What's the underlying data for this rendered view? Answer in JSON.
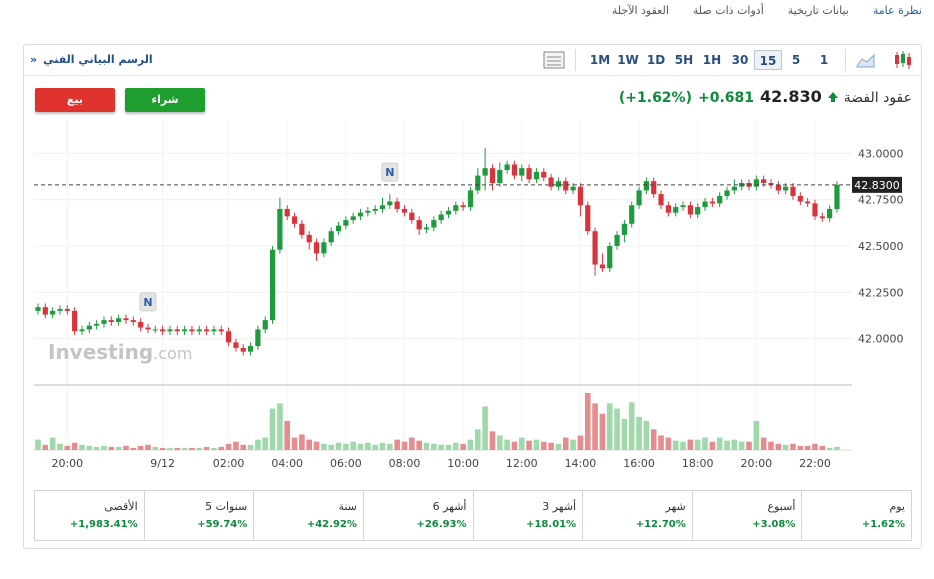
{
  "tabs": [
    "نظرة عامة",
    "بيانات تاريخية",
    "أدوات ذات صلة",
    "العقود الآجلة"
  ],
  "toolbar": {
    "title": "الرسم البياني الفني",
    "collapse": "«",
    "intervals": [
      "1M",
      "1W",
      "1D",
      "5H",
      "1H",
      "30",
      "15",
      "5",
      "1"
    ]
  },
  "trade": {
    "sell": "بيع",
    "buy": "شراء"
  },
  "quote": {
    "name": "عقود الفضة",
    "price": "42.830",
    "change": "+0.681",
    "change_pct": "(+1.62%)"
  },
  "chart_data": {
    "type": "candlestick",
    "categories": [
      null,
      null,
      null,
      null,
      "20:00",
      null,
      null,
      null,
      null,
      null,
      null,
      null,
      null,
      null,
      null,
      null,
      null,
      "9/12",
      null,
      null,
      null,
      null,
      null,
      null,
      null,
      null,
      "02:00",
      null,
      null,
      null,
      null,
      null,
      null,
      null,
      "04:00",
      null,
      null,
      null,
      null,
      null,
      null,
      null,
      "06:00",
      null,
      null,
      null,
      null,
      null,
      null,
      null,
      "08:00",
      null,
      null,
      null,
      null,
      null,
      null,
      null,
      "10:00",
      null,
      null,
      null,
      null,
      null,
      null,
      null,
      "12:00",
      null,
      null,
      null,
      null,
      null,
      null,
      null,
      "14:00",
      null,
      null,
      null,
      null,
      null,
      null,
      null,
      "16:00",
      null,
      null,
      null,
      null,
      null,
      null,
      null,
      "18:00",
      null,
      null,
      null,
      null,
      null,
      null,
      null,
      "20:00",
      null,
      null,
      null,
      null,
      null,
      null,
      null,
      "22:00",
      null,
      null,
      null
    ],
    "open": [
      42.15,
      42.17,
      42.13,
      42.15,
      42.16,
      42.15,
      42.04,
      42.05,
      42.07,
      42.08,
      42.1,
      42.09,
      42.11,
      42.1,
      42.09,
      42.06,
      42.05,
      42.05,
      42.04,
      42.05,
      42.04,
      42.05,
      42.04,
      42.05,
      42.04,
      42.05,
      42.04,
      41.98,
      41.95,
      41.93,
      41.96,
      42.05,
      42.1,
      42.48,
      42.7,
      42.66,
      42.62,
      42.56,
      42.52,
      42.46,
      42.52,
      42.58,
      42.61,
      42.64,
      42.66,
      42.68,
      42.69,
      42.7,
      42.72,
      42.74,
      42.7,
      42.68,
      42.64,
      42.59,
      42.6,
      42.64,
      42.67,
      42.69,
      42.72,
      42.71,
      42.8,
      42.88,
      42.92,
      42.84,
      42.91,
      42.94,
      42.88,
      42.92,
      42.86,
      42.9,
      42.87,
      42.82,
      42.85,
      42.8,
      42.82,
      42.72,
      42.58,
      42.4,
      42.38,
      42.5,
      42.56,
      42.62,
      42.72,
      42.8,
      42.85,
      42.78,
      42.72,
      42.68,
      42.71,
      42.72,
      42.67,
      42.71,
      42.74,
      42.73,
      42.77,
      42.8,
      42.82,
      42.84,
      42.82,
      42.86,
      42.84,
      42.83,
      42.8,
      42.82,
      42.77,
      42.74,
      42.73,
      42.66,
      42.65,
      42.7
    ],
    "high": [
      42.19,
      42.19,
      42.17,
      42.18,
      42.18,
      42.17,
      42.07,
      42.09,
      42.1,
      42.12,
      42.12,
      42.13,
      42.13,
      42.12,
      42.11,
      42.08,
      42.07,
      42.07,
      42.07,
      42.07,
      42.07,
      42.07,
      42.07,
      42.07,
      42.07,
      42.07,
      42.06,
      42.0,
      41.97,
      41.98,
      42.07,
      42.12,
      42.5,
      42.76,
      42.72,
      42.68,
      42.64,
      42.58,
      42.54,
      42.54,
      42.6,
      42.63,
      42.66,
      42.68,
      42.7,
      42.71,
      42.72,
      42.76,
      42.78,
      42.76,
      42.72,
      42.7,
      42.66,
      42.62,
      42.66,
      42.69,
      42.71,
      42.74,
      42.74,
      42.82,
      42.92,
      43.03,
      42.94,
      42.95,
      42.96,
      42.96,
      42.94,
      42.94,
      42.92,
      42.92,
      42.89,
      42.87,
      42.87,
      42.84,
      42.84,
      42.74,
      42.6,
      42.46,
      42.52,
      42.58,
      42.64,
      42.74,
      42.82,
      42.87,
      42.87,
      42.8,
      42.74,
      42.73,
      42.74,
      42.74,
      42.73,
      42.76,
      42.76,
      42.79,
      42.82,
      42.86,
      42.86,
      42.86,
      42.88,
      42.88,
      42.86,
      42.85,
      42.84,
      42.84,
      42.79,
      42.76,
      42.75,
      42.68,
      42.72,
      42.85
    ],
    "low": [
      42.13,
      42.11,
      42.11,
      42.13,
      42.13,
      42.02,
      42.02,
      42.03,
      42.05,
      42.06,
      42.07,
      42.07,
      42.08,
      42.07,
      42.04,
      42.03,
      42.03,
      42.02,
      42.02,
      42.02,
      42.02,
      42.02,
      42.02,
      42.02,
      42.02,
      42.02,
      41.96,
      41.93,
      41.91,
      41.91,
      41.94,
      42.03,
      42.08,
      42.46,
      42.64,
      42.6,
      42.54,
      42.48,
      42.42,
      42.44,
      42.5,
      42.56,
      42.59,
      42.62,
      42.64,
      42.66,
      42.67,
      42.68,
      42.7,
      42.68,
      42.66,
      42.62,
      42.56,
      42.57,
      42.58,
      42.62,
      42.65,
      42.67,
      42.69,
      42.69,
      42.78,
      42.8,
      42.8,
      42.82,
      42.89,
      42.86,
      42.85,
      42.84,
      42.84,
      42.85,
      42.8,
      42.8,
      42.78,
      42.78,
      42.66,
      42.56,
      42.34,
      42.36,
      42.36,
      42.48,
      42.52,
      42.6,
      42.7,
      42.78,
      42.76,
      42.7,
      42.66,
      42.66,
      42.69,
      42.65,
      42.65,
      42.69,
      42.71,
      42.71,
      42.75,
      42.78,
      42.8,
      42.8,
      42.8,
      42.82,
      42.81,
      42.78,
      42.78,
      42.75,
      42.72,
      42.71,
      42.64,
      42.63,
      42.63,
      42.68
    ],
    "close": [
      42.17,
      42.13,
      42.15,
      42.16,
      42.15,
      42.04,
      42.05,
      42.07,
      42.08,
      42.1,
      42.09,
      42.11,
      42.1,
      42.09,
      42.06,
      42.05,
      42.05,
      42.04,
      42.05,
      42.04,
      42.05,
      42.04,
      42.05,
      42.04,
      42.05,
      42.04,
      41.98,
      41.95,
      41.93,
      41.96,
      42.05,
      42.1,
      42.48,
      42.7,
      42.66,
      42.62,
      42.56,
      42.52,
      42.46,
      42.52,
      42.58,
      42.61,
      42.64,
      42.66,
      42.68,
      42.69,
      42.7,
      42.72,
      42.74,
      42.7,
      42.68,
      42.64,
      42.59,
      42.6,
      42.64,
      42.67,
      42.69,
      42.72,
      42.71,
      42.8,
      42.88,
      42.92,
      42.84,
      42.91,
      42.94,
      42.88,
      42.92,
      42.86,
      42.9,
      42.87,
      42.82,
      42.85,
      42.8,
      42.82,
      42.72,
      42.58,
      42.4,
      42.38,
      42.5,
      42.56,
      42.62,
      42.72,
      42.8,
      42.85,
      42.78,
      42.72,
      42.68,
      42.71,
      42.72,
      42.67,
      42.71,
      42.74,
      42.73,
      42.77,
      42.8,
      42.82,
      42.84,
      42.82,
      42.86,
      42.84,
      42.83,
      42.8,
      42.82,
      42.77,
      42.74,
      42.73,
      42.66,
      42.65,
      42.7,
      42.83
    ],
    "volume": [
      10,
      5,
      12,
      6,
      4,
      7,
      5,
      4,
      3,
      4,
      3,
      3,
      4,
      2,
      4,
      5,
      3,
      2,
      2,
      2,
      2,
      2,
      2,
      3,
      2,
      3,
      6,
      8,
      5,
      5,
      10,
      12,
      40,
      45,
      28,
      12,
      15,
      10,
      8,
      6,
      5,
      7,
      6,
      8,
      6,
      7,
      5,
      7,
      6,
      10,
      8,
      12,
      9,
      7,
      6,
      5,
      5,
      7,
      6,
      10,
      20,
      42,
      18,
      14,
      10,
      8,
      12,
      9,
      10,
      8,
      7,
      6,
      12,
      10,
      14,
      55,
      45,
      35,
      45,
      40,
      30,
      46,
      32,
      28,
      20,
      14,
      12,
      9,
      8,
      10,
      10,
      12,
      8,
      12,
      9,
      10,
      8,
      8,
      28,
      12,
      8,
      6,
      5,
      6,
      4,
      4,
      6,
      4,
      2,
      3
    ],
    "ylim": [
      41.75,
      43.18
    ],
    "yticks": [
      {
        "value": 42,
        "label": "42.0000"
      },
      {
        "value": 42.25,
        "label": "42.2500"
      },
      {
        "value": 42.5,
        "label": "42.5000"
      },
      {
        "value": 42.75,
        "label": "42.7500"
      },
      {
        "value": 43,
        "label": "43.0000"
      }
    ],
    "last_price": {
      "value": 42.83,
      "label": "42.8300"
    },
    "annotations": [
      {
        "label": "N",
        "index": 15
      },
      {
        "label": "N",
        "index": 48
      }
    ],
    "watermark": {
      "brand": "Investing",
      "suffix": ".com"
    },
    "up_color": "#1f9a3c",
    "down_color": "#d8343b",
    "volume_up_color": "#9fd9aa",
    "volume_down_color": "#e58c8f",
    "grid": true
  },
  "performance": [
    {
      "period": "يوم",
      "change": "+1.62%"
    },
    {
      "period": "أسبوع",
      "change": "+3.08%"
    },
    {
      "period": "شهر",
      "change": "+12.70%"
    },
    {
      "period": "3 أشهر",
      "change": "+18.01%"
    },
    {
      "period": "6 أشهر",
      "change": "+26.93%"
    },
    {
      "period": "سنة",
      "change": "+42.92%"
    },
    {
      "period": "5 سنوات",
      "change": "+59.74%"
    },
    {
      "period": "الأقصى",
      "change": "+1,983.41%"
    }
  ]
}
